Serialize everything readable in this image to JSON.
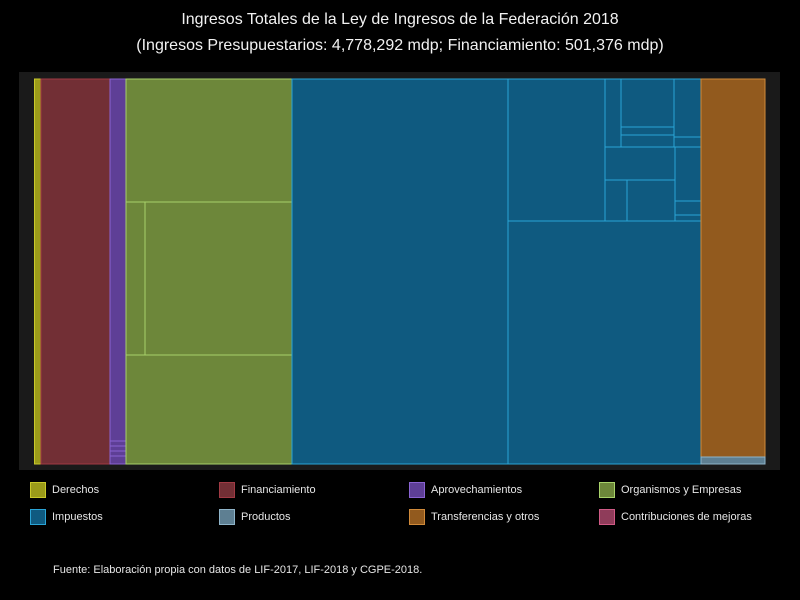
{
  "chart_data": {
    "type": "treemap",
    "title": "Ingresos Totales de la Ley de Ingresos de la Federación 2018",
    "subtitle": "(Ingresos Presupuestarios: 4,778,292 mdp; Financiamiento: 501,376 mdp)",
    "background": "#1a1a1a",
    "categories": [
      {
        "name": "Derechos",
        "fill": "#9b9b1a",
        "stroke": "#c8c82a",
        "share": 0.01
      },
      {
        "name": "Financiamiento",
        "fill": "#722f35",
        "stroke": "#a03a44",
        "share": 0.096
      },
      {
        "name": "Aprovechamientos",
        "fill": "#5e3f96",
        "stroke": "#8a63d2",
        "share": 0.022
      },
      {
        "name": "Organismos y Empresas",
        "fill": "#6d873a",
        "stroke": "#a8d26a",
        "share": 0.226
      },
      {
        "name": "Impuestos",
        "fill": "#0f5a80",
        "stroke": "#2aa4d6",
        "share": 0.56
      },
      {
        "name": "Productos",
        "fill": "#5e7f92",
        "stroke": "#8fb4c9",
        "share": 0.002
      },
      {
        "name": "Transferencias y otros",
        "fill": "#925a1e",
        "stroke": "#d08a3a",
        "share": 0.084
      },
      {
        "name": "Contribuciones de mejoras",
        "fill": "#8f3c5a",
        "stroke": "#d05a86",
        "share": 0.0001
      }
    ]
  },
  "legend": [
    "Derechos",
    "Financiamiento",
    "Aprovechamientos",
    "Organismos y Empresas",
    "Impuestos",
    "Productos",
    "Transferencias y otros",
    "Contribuciones de mejoras"
  ],
  "source": "Fuente: Elaboración propia con datos de LIF-2017, LIF-2018 y CGPE-2018."
}
